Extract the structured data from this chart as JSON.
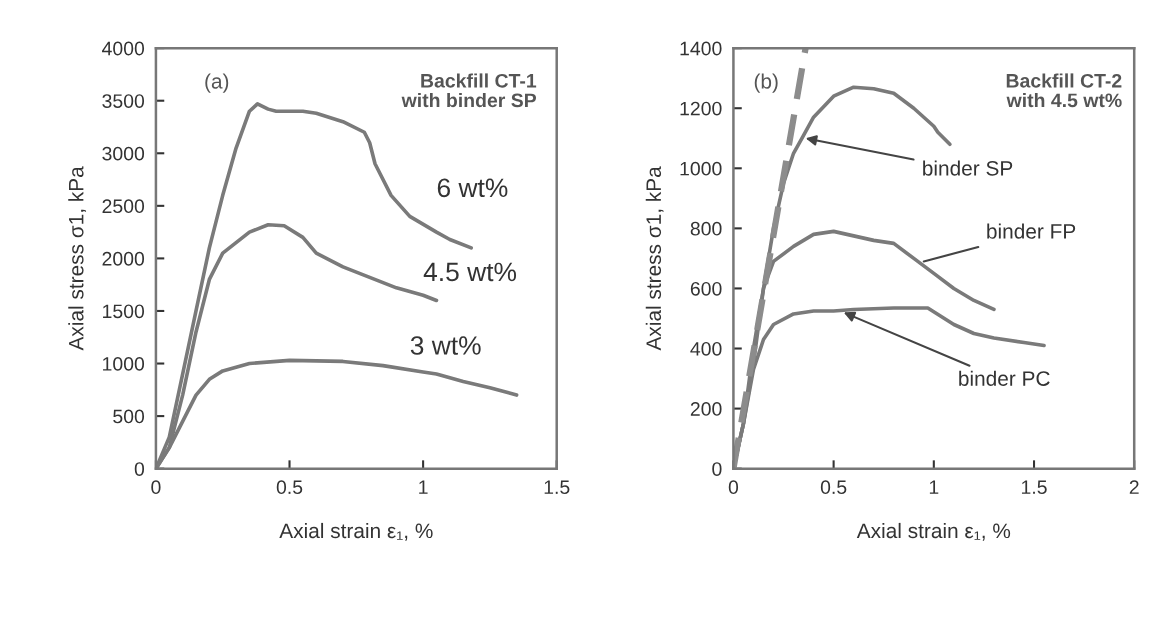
{
  "chart_data": [
    {
      "type": "line",
      "xlabel": "Axial strain ε₁, %",
      "ylabel": "Axial stress σ1, kPa",
      "xlim": [
        0,
        1.5
      ],
      "ylim": [
        0,
        4000
      ],
      "xticks": [
        0,
        0.5,
        1,
        1.5
      ],
      "yticks": [
        0,
        500,
        1000,
        1500,
        2000,
        2500,
        3000,
        3500,
        4000
      ],
      "grid": false,
      "legend": false,
      "line_style": "solid",
      "marker": "none",
      "annotations": [
        "(a)",
        "Backfill CT-1\nwith binder SP"
      ],
      "series": [
        {
          "name": "6 wt%",
          "color": "#7a7a7a",
          "x": [
            0,
            0.05,
            0.1,
            0.15,
            0.2,
            0.25,
            0.3,
            0.35,
            0.38,
            0.42,
            0.45,
            0.55,
            0.6,
            0.7,
            0.78,
            0.8,
            0.82,
            0.88,
            0.95,
            1.05,
            1.1,
            1.18
          ],
          "values": [
            0,
            300,
            900,
            1500,
            2100,
            2600,
            3050,
            3400,
            3470,
            3420,
            3400,
            3400,
            3380,
            3300,
            3200,
            3100,
            2900,
            2600,
            2400,
            2250,
            2180,
            2100
          ]
        },
        {
          "name": "4.5 wt%",
          "color": "#7a7a7a",
          "x": [
            0,
            0.05,
            0.1,
            0.15,
            0.2,
            0.25,
            0.3,
            0.35,
            0.42,
            0.48,
            0.55,
            0.6,
            0.7,
            0.8,
            0.9,
            1.0,
            1.05
          ],
          "values": [
            0,
            200,
            700,
            1300,
            1800,
            2050,
            2150,
            2250,
            2320,
            2310,
            2200,
            2050,
            1920,
            1820,
            1720,
            1650,
            1600
          ]
        },
        {
          "name": "3 wt%",
          "color": "#7a7a7a",
          "x": [
            0,
            0.05,
            0.1,
            0.15,
            0.2,
            0.25,
            0.35,
            0.5,
            0.7,
            0.85,
            1.0,
            1.05,
            1.15,
            1.25,
            1.35
          ],
          "values": [
            0,
            200,
            450,
            700,
            850,
            930,
            1000,
            1030,
            1020,
            980,
            920,
            900,
            830,
            770,
            700
          ]
        }
      ]
    },
    {
      "type": "line",
      "xlabel": "Axial strain ε₁, %",
      "ylabel": "Axial stress σ1, kPa",
      "xlim": [
        0,
        2
      ],
      "ylim": [
        0,
        1400
      ],
      "xticks": [
        0,
        0.5,
        1,
        1.5,
        2
      ],
      "yticks": [
        0,
        200,
        400,
        600,
        800,
        1000,
        1200,
        1400
      ],
      "grid": false,
      "legend": false,
      "line_style": "solid",
      "marker": "none",
      "annotations": [
        "(b)",
        "Backfill CT-2\nwith 4.5 wt%",
        {
          "text": "binder SP",
          "x": 0.36,
          "y": 1100
        },
        {
          "text": "binder FP",
          "x": 0.95,
          "y": 690
        },
        {
          "text": "binder PC",
          "x": 0.55,
          "y": 520
        }
      ],
      "series": [
        {
          "color": "#7a7a7a",
          "x": [
            0,
            0.05,
            0.1,
            0.15,
            0.2,
            0.25,
            0.3,
            0.35,
            0.4,
            0.5,
            0.6,
            0.7,
            0.8,
            0.9,
            1.0,
            1.02,
            1.08
          ],
          "values": [
            0,
            150,
            350,
            600,
            800,
            950,
            1050,
            1110,
            1170,
            1240,
            1270,
            1265,
            1250,
            1200,
            1140,
            1120,
            1080
          ]
        },
        {
          "color": "#7a7a7a",
          "x": [
            0,
            0.05,
            0.1,
            0.15,
            0.2,
            0.3,
            0.4,
            0.5,
            0.6,
            0.7,
            0.8,
            0.9,
            1.0,
            1.1,
            1.2,
            1.3
          ],
          "values": [
            0,
            150,
            400,
            600,
            690,
            740,
            780,
            790,
            775,
            760,
            750,
            700,
            650,
            600,
            560,
            530
          ]
        },
        {
          "color": "#7a7a7a",
          "x": [
            0,
            0.05,
            0.1,
            0.15,
            0.2,
            0.3,
            0.4,
            0.5,
            0.6,
            0.8,
            0.97,
            1.1,
            1.2,
            1.3,
            1.45,
            1.55
          ],
          "values": [
            0,
            150,
            330,
            430,
            480,
            515,
            525,
            525,
            530,
            535,
            535,
            480,
            450,
            435,
            420,
            410
          ]
        },
        {
          "color": "#8c8c8c",
          "line_style": "dashed",
          "x": [
            0,
            0.36
          ],
          "values": [
            0,
            1400
          ]
        }
      ]
    }
  ]
}
